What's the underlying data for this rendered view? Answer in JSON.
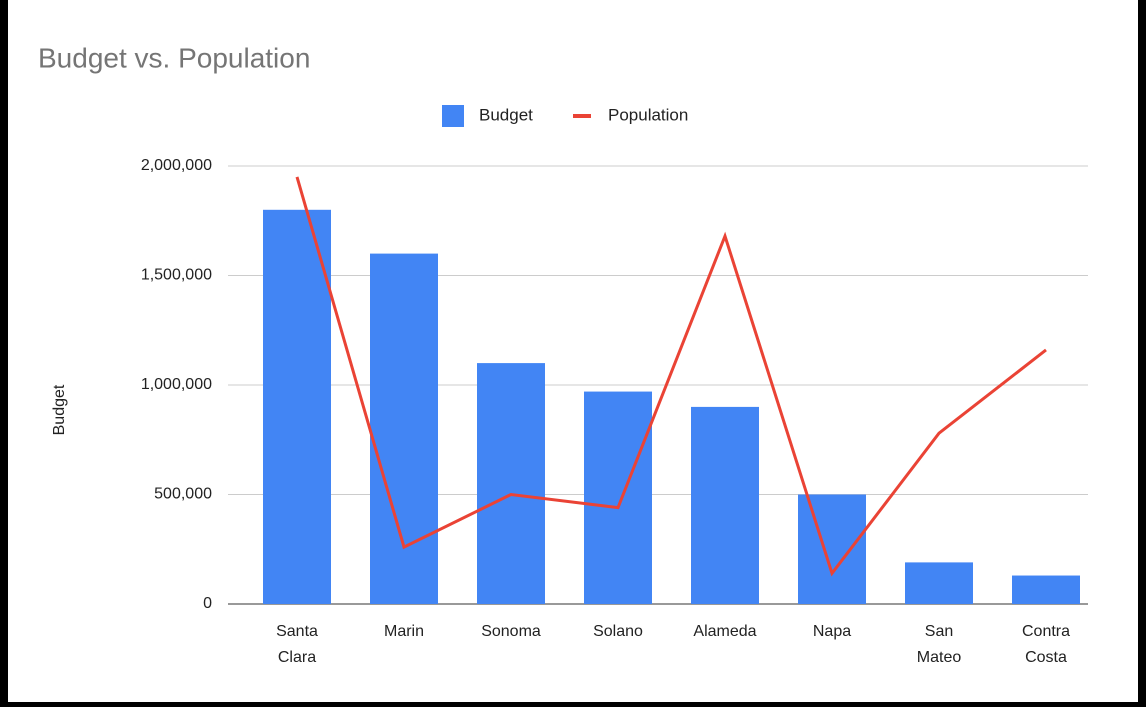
{
  "chart_data": {
    "type": "combo",
    "title": "Budget vs. Population",
    "categories": [
      "Santa Clara",
      "Marin",
      "Sonoma",
      "Solano",
      "Alameda",
      "Napa",
      "San Mateo",
      "Contra Costa"
    ],
    "series": [
      {
        "name": "Budget",
        "type": "bar",
        "color": "#4285f4",
        "values": [
          1800000,
          1600000,
          1100000,
          970000,
          900000,
          500000,
          190000,
          130000
        ]
      },
      {
        "name": "Population",
        "type": "line",
        "color": "#ea4335",
        "values": [
          1950000,
          260000,
          500000,
          440000,
          1680000,
          140000,
          780000,
          1160000
        ]
      }
    ],
    "ylabel": "Budget",
    "ylim": [
      0,
      2000000
    ],
    "yticks": [
      0,
      {
        "value": 500000,
        "label": "500,000"
      },
      {
        "value": 1000000,
        "label": "1,000,000"
      },
      {
        "value": 1500000,
        "label": "1,500,000"
      },
      {
        "value": 2000000,
        "label": "2,000,000"
      }
    ],
    "grid": true,
    "legend": "top"
  }
}
